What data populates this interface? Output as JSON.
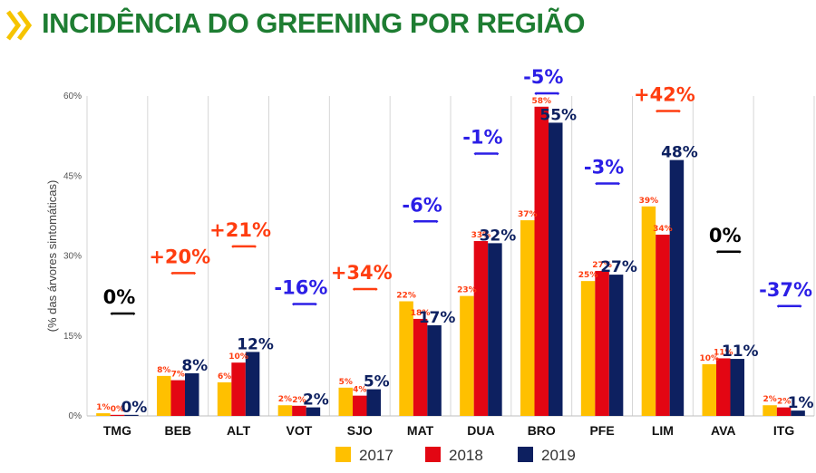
{
  "header": {
    "title": "INCIDÊNCIA DO GREENING POR REGIÃO"
  },
  "colors": {
    "title": "#1e7d32",
    "chevron": "#f6c400",
    "s2017": "#ffc000",
    "s2018": "#e30613",
    "s2019": "#0d2060",
    "increase": "#ff3d10",
    "decrease": "#2b1ee6",
    "neutral": "#000000"
  },
  "chart_data": {
    "type": "bar",
    "title": "",
    "xlabel": "",
    "ylabel": "(% das árvores sintomáticas)",
    "ylim": [
      0,
      60
    ],
    "yticks": [
      0,
      15,
      30,
      45,
      60
    ],
    "ytick_labels": [
      "0%",
      "15%",
      "30%",
      "45%",
      "60%"
    ],
    "grid": "vertical category separators",
    "legend": "bottom-center",
    "categories": [
      "TMG",
      "BEB",
      "ALT",
      "VOT",
      "SJO",
      "MAT",
      "DUA",
      "BRO",
      "PFE",
      "LIM",
      "AVA",
      "ITG"
    ],
    "series": [
      {
        "name": "2017",
        "values": [
          0.5,
          7.5,
          6.3,
          2.0,
          5.3,
          21.5,
          22.5,
          36.7,
          25.3,
          39.3,
          9.7,
          2.0
        ],
        "labels": [
          "1%",
          "8%",
          "6%",
          "2%",
          "5%",
          "22%",
          "23%",
          "37%",
          "25%",
          "39%",
          "10%",
          "2%"
        ]
      },
      {
        "name": "2018",
        "values": [
          0.2,
          6.7,
          10.0,
          1.9,
          3.8,
          18.2,
          32.8,
          58.0,
          27.2,
          34.0,
          10.8,
          1.6
        ],
        "labels": [
          "0%",
          "7%",
          "10%",
          "2%",
          "4%",
          "18%",
          "33%",
          "58%",
          "27%",
          "34%",
          "11%",
          "2%"
        ]
      },
      {
        "name": "2019",
        "values": [
          0.2,
          8.0,
          12.0,
          1.6,
          5.0,
          17.0,
          32.4,
          55.0,
          26.5,
          48.0,
          10.7,
          1.0
        ],
        "labels": [
          "0%",
          "8%",
          "12%",
          "2%",
          "5%",
          "17%",
          "32%",
          "55%",
          "27%",
          "48%",
          "11%",
          "1%"
        ]
      }
    ],
    "change_labels": [
      "0%",
      "+20%",
      "+21%",
      "-16%",
      "+34%",
      "-6%",
      "-1%",
      "-5%",
      "-3%",
      "+42%",
      "0%",
      "-37%"
    ],
    "change_kind": [
      "neutral",
      "increase",
      "increase",
      "decrease",
      "increase",
      "decrease",
      "decrease",
      "decrease",
      "decrease",
      "increase",
      "neutral",
      "decrease"
    ],
    "change_level": [
      19.2,
      26.8,
      31.8,
      21.0,
      23.8,
      36.5,
      49.2,
      60.5,
      43.6,
      57.2,
      30.8,
      20.6
    ]
  }
}
